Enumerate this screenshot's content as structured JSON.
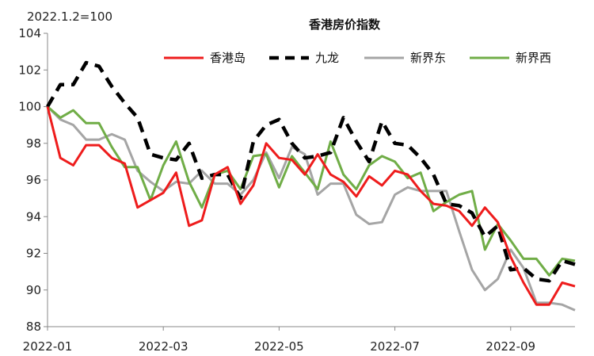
{
  "chart_data": {
    "type": "line",
    "title": "香港房价指数",
    "note": "2022.1.2=100",
    "ylim": [
      88,
      104
    ],
    "yticks": [
      "104",
      "102",
      "100",
      "98",
      "96",
      "94",
      "92",
      "90",
      "88"
    ],
    "xtick_labels": [
      "2022-01",
      "2022-03",
      "2022-05",
      "2022-07",
      "2022-09"
    ],
    "x_tick_index": [
      0,
      9,
      18,
      27,
      36
    ],
    "legend_position": "top",
    "series": [
      {
        "name": "香港岛",
        "color": "#ee1c1c",
        "dash": "solid",
        "values": [
          100,
          97.2,
          96.8,
          97.9,
          97.9,
          97.2,
          96.9,
          94.5,
          94.9,
          95.3,
          96.4,
          93.5,
          93.8,
          96.3,
          96.7,
          94.7,
          95.7,
          98.0,
          97.2,
          97.1,
          96.3,
          97.4,
          96.3,
          95.9,
          95.1,
          96.2,
          95.7,
          96.5,
          96.3,
          95.4,
          94.7,
          94.6,
          94.3,
          93.5,
          94.5,
          93.7,
          91.8,
          90.4,
          89.2,
          89.2,
          90.4,
          90.2
        ]
      },
      {
        "name": "九龙",
        "color": "#000000",
        "dash": "dash",
        "values": [
          100,
          101.2,
          101.2,
          102.4,
          102.2,
          101.1,
          100.2,
          99.4,
          97.4,
          97.2,
          97.1,
          98.0,
          96.1,
          96.3,
          96.3,
          95.0,
          98.1,
          99.0,
          99.3,
          98.0,
          97.2,
          97.3,
          97.5,
          99.4,
          98.1,
          97.0,
          99.2,
          98.0,
          97.9,
          97.2,
          96.3,
          94.7,
          94.6,
          94.2,
          92.9,
          93.5,
          91.1,
          91.2,
          90.6,
          90.5,
          91.6,
          91.4
        ]
      },
      {
        "name": "新界东",
        "color": "#a5a5a5",
        "dash": "solid",
        "values": [
          100,
          99.3,
          99.0,
          98.2,
          98.2,
          98.5,
          98.2,
          96.5,
          95.9,
          95.4,
          95.9,
          95.8,
          96.5,
          95.8,
          95.8,
          95.2,
          96.0,
          97.5,
          96.1,
          97.8,
          97.4,
          95.2,
          95.8,
          95.8,
          94.1,
          93.6,
          93.7,
          95.2,
          95.6,
          95.4,
          95.4,
          95.4,
          93.2,
          91.1,
          90.0,
          90.6,
          92.2,
          91.2,
          89.3,
          89.3,
          89.2,
          88.9
        ]
      },
      {
        "name": "新界西",
        "color": "#70ad47",
        "dash": "solid",
        "values": [
          100,
          99.4,
          99.8,
          99.1,
          99.1,
          97.8,
          96.7,
          96.7,
          94.9,
          96.8,
          98.1,
          95.9,
          94.5,
          96.3,
          96.5,
          95.5,
          97.3,
          97.4,
          95.6,
          97.3,
          96.4,
          95.5,
          98.1,
          96.3,
          95.5,
          96.8,
          97.3,
          97.0,
          96.1,
          96.4,
          94.3,
          94.8,
          95.2,
          95.4,
          92.2,
          93.6,
          92.7,
          91.7,
          91.7,
          90.8,
          91.7,
          91.6
        ]
      }
    ]
  }
}
